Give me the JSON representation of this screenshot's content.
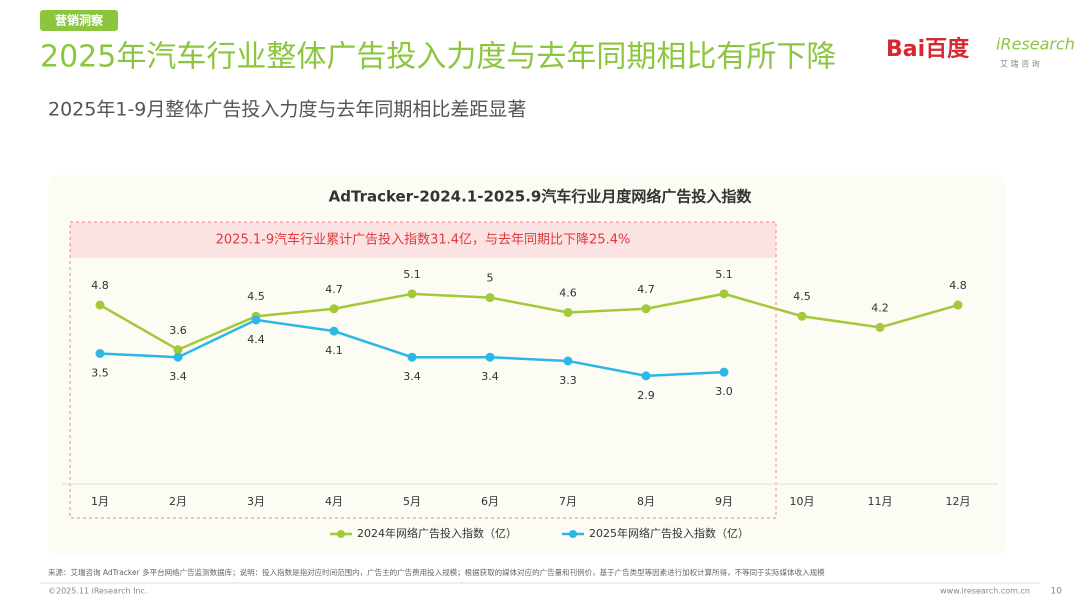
{
  "header": {
    "tag": "营销洞察",
    "title": "2025年汽车行业整体广告投入力度与去年同期相比有所下降",
    "subtitle": "2025年1-9月整体广告投入力度与去年同期相比差距显著",
    "logo_baidu": "Bai百度",
    "logo_iresearch": "iResearch",
    "logo_iresearch_cn": "艾 瑞 咨 询"
  },
  "chart_data": {
    "type": "line",
    "title": "AdTracker-2024.1-2025.9汽车行业月度网络广告投入指数",
    "annotation": "2025.1-9汽车行业累计广告投入指数31.4亿，与去年同期比下降25.4%",
    "categories": [
      "1月",
      "2月",
      "3月",
      "4月",
      "5月",
      "6月",
      "7月",
      "8月",
      "9月",
      "10月",
      "11月",
      "12月"
    ],
    "series": [
      {
        "name": "2024年网络广告投入指数（亿）",
        "color": "#a3c93a",
        "values": [
          4.8,
          3.6,
          4.5,
          4.7,
          5.1,
          5,
          4.6,
          4.7,
          5.1,
          4.5,
          4.2,
          4.8
        ]
      },
      {
        "name": "2025年网络广告投入指数（亿）",
        "color": "#2cb8e4",
        "values": [
          3.5,
          3.4,
          4.4,
          4.1,
          3.4,
          3.4,
          3.3,
          2.9,
          3.0,
          null,
          null,
          null
        ],
        "value_labels": [
          "3.5",
          "3.4",
          "4.4",
          "4.1",
          "3.4",
          "3.4",
          "3.3",
          "2.9",
          "3.0",
          null,
          null,
          null
        ]
      }
    ],
    "ylim": [
      0,
      7
    ]
  },
  "footer": {
    "source": "来源：艾瑞咨询 AdTracker 多平台网络广告监测数据库；说明：投入指数是指对应时间范围内，广告主的广告费用投入规模；根据获取的媒体对应的广告量和刊例价，基于广告类型等因素进行加权计算所得，不等同于实际媒体收入规模",
    "copyright": "©2025.11 iResearch Inc.",
    "url": "www.iresearch.com.cn",
    "page": "10"
  }
}
